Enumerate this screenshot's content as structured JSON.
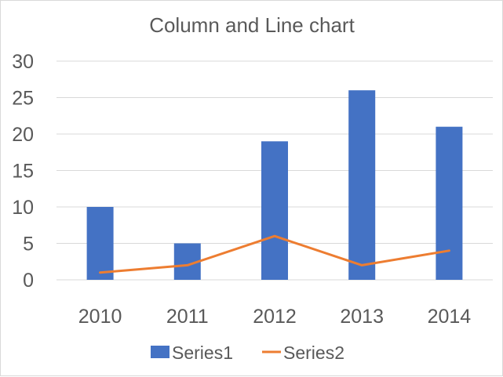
{
  "chart_data": {
    "type": "bar+line",
    "title": "Column and Line chart",
    "xlabel": "",
    "ylabel": "",
    "categories": [
      "2010",
      "2011",
      "2012",
      "2013",
      "2014"
    ],
    "series": [
      {
        "name": "Series1",
        "type": "bar",
        "color": "#4472C4",
        "values": [
          10,
          5,
          19,
          26,
          21
        ]
      },
      {
        "name": "Series2",
        "type": "line",
        "color": "#ED7D31",
        "values": [
          1,
          2,
          6,
          2,
          4
        ]
      }
    ],
    "ylim": [
      0,
      30
    ],
    "yticks": [
      "0",
      "5",
      "10",
      "15",
      "20",
      "25",
      "30"
    ],
    "grid": true,
    "legend_position": "bottom"
  }
}
